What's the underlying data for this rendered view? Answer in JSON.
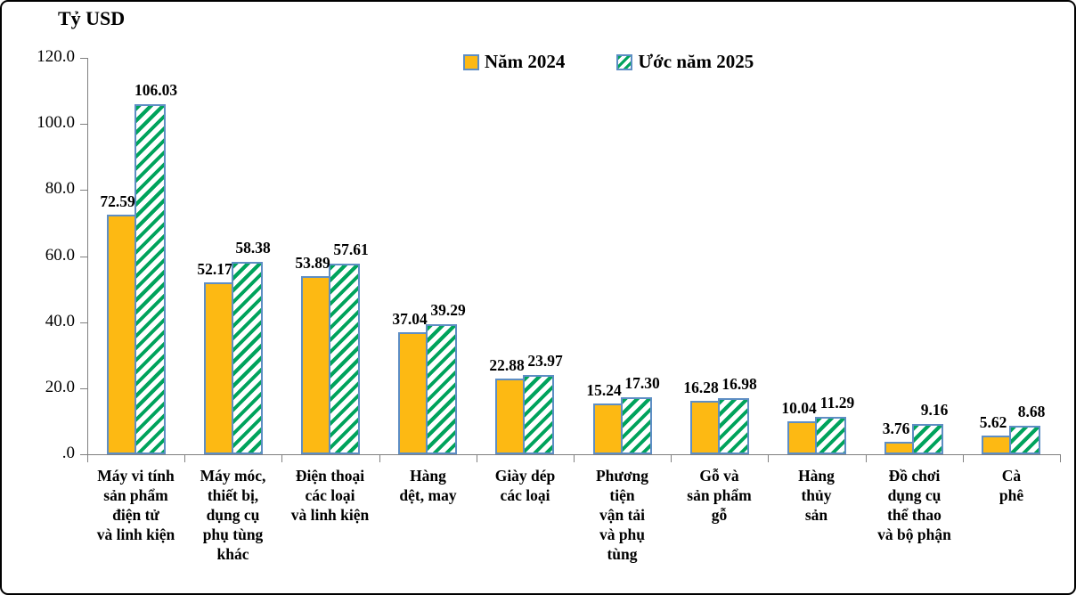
{
  "page": {
    "background": "#ffffff",
    "frame_border_color": "#000000"
  },
  "chart_data": {
    "type": "bar",
    "title": "Tỷ USD",
    "unit_label": "Tỷ USD",
    "xlabel": "",
    "ylabel": "Tỷ USD",
    "ylim": [
      0,
      120
    ],
    "grid": false,
    "legend_position": "top-center",
    "axis_color": "#808080",
    "bar_border_color": "#5E8EC4",
    "categories": [
      "Máy vi tính sản phẩm điện tử và linh kiện",
      "Máy móc, thiết bị, dụng cụ phụ tùng khác",
      "Điện thoại các loại và linh kiện",
      "Hàng dệt, may",
      "Giày dép các loại",
      "Phương tiện vận tải và phụ tùng",
      "Gỗ và sản phẩm gỗ",
      "Hàng thủy sản",
      "Đồ chơi dụng cụ thể thao và bộ phận",
      "Cà phê"
    ],
    "category_display_lines": [
      "Máy vi tính\nsản phẩm\nđiện tử\nvà linh kiện",
      "Máy móc,\nthiết bị,\ndụng cụ\nphụ tùng\nkhác",
      "Điện thoại\ncác loại\nvà linh kiện",
      "Hàng\ndệt, may",
      "Giày dép\ncác loại",
      "Phương\ntiện\nvận tải\nvà phụ\ntùng",
      "Gỗ và\nsản phẩm\ngỗ",
      "Hàng\nthủy\nsản",
      "Đồ chơi\ndụng cụ\nthể thao\nvà bộ phận",
      "Cà\nphê"
    ],
    "series": [
      {
        "name": "Năm 2024",
        "style": "solid",
        "color": "#FDB913",
        "values": [
          72.59,
          52.17,
          53.89,
          37.04,
          22.88,
          15.24,
          16.28,
          10.04,
          3.76,
          5.62
        ]
      },
      {
        "name": "Ước năm 2025",
        "style": "hatched-diagonal",
        "color": "#00A35C",
        "hatch_background": "#ffffff",
        "values": [
          106.03,
          58.38,
          57.61,
          39.29,
          23.97,
          17.3,
          16.98,
          11.29,
          9.16,
          8.68
        ]
      }
    ],
    "yticks": [
      {
        "value": 0,
        "label": ".0"
      },
      {
        "value": 20,
        "label": "20.0"
      },
      {
        "value": 40,
        "label": "40.0"
      },
      {
        "value": 60,
        "label": "60.0"
      },
      {
        "value": 80,
        "label": "80.0"
      },
      {
        "value": 100,
        "label": "100.0"
      },
      {
        "value": 120,
        "label": "120.0"
      }
    ]
  }
}
